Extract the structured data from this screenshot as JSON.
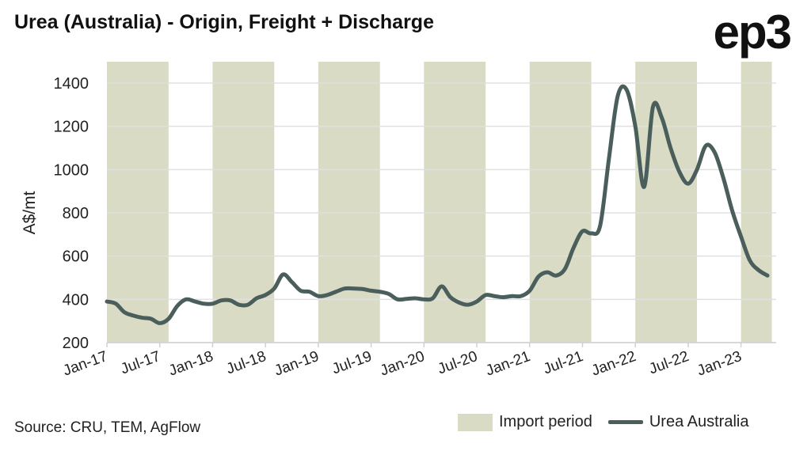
{
  "title": "Urea (Australia) - Origin, Freight + Discharge",
  "logo": "ep3",
  "source": "Source: CRU, TEM, AgFlow",
  "chart_data": {
    "type": "line",
    "title": "Urea (Australia) - Origin, Freight + Discharge",
    "ylabel": "A$/mt",
    "xlabel": "",
    "ylim": [
      200,
      1400
    ],
    "yticks": [
      200,
      400,
      600,
      800,
      1000,
      1200,
      1400
    ],
    "xtick_labels": [
      "Jan-17",
      "Jul-17",
      "Jan-18",
      "Jul-18",
      "Jan-19",
      "Jul-19",
      "Jan-20",
      "Jul-20",
      "Jan-21",
      "Jul-21",
      "Jan-22",
      "Jul-22",
      "Jan-23"
    ],
    "x_start": "Jan-17",
    "x_unit": "month",
    "grid": true,
    "legend": "bottom-right",
    "legend_entries": [
      "Import period",
      "Urea Australia"
    ],
    "import_periods": [
      [
        "Jan-17",
        "Aug-17"
      ],
      [
        "Jan-18",
        "Aug-18"
      ],
      [
        "Jan-19",
        "Aug-19"
      ],
      [
        "Jan-20",
        "Aug-20"
      ],
      [
        "Jan-21",
        "Aug-21"
      ],
      [
        "Jan-22",
        "Aug-22"
      ],
      [
        "Jan-23",
        "May-23"
      ]
    ],
    "import_periods_months": [
      [
        0,
        7
      ],
      [
        12,
        19
      ],
      [
        24,
        31
      ],
      [
        36,
        43
      ],
      [
        48,
        55
      ],
      [
        60,
        67
      ],
      [
        72,
        75.5
      ]
    ],
    "series": [
      {
        "name": "Urea Australia",
        "color": "#4a5e5c",
        "values": [
          390,
          380,
          340,
          325,
          315,
          310,
          290,
          310,
          370,
          400,
          390,
          380,
          380,
          395,
          395,
          375,
          375,
          405,
          420,
          450,
          515,
          480,
          440,
          435,
          415,
          420,
          435,
          450,
          450,
          448,
          440,
          435,
          425,
          400,
          402,
          405,
          400,
          405,
          460,
          410,
          385,
          375,
          390,
          420,
          415,
          410,
          415,
          415,
          440,
          505,
          525,
          510,
          540,
          640,
          715,
          705,
          740,
          1050,
          1340,
          1370,
          1200,
          920,
          1290,
          1240,
          1100,
          990,
          935,
          1000,
          1110,
          1080,
          960,
          810,
          690,
          580,
          535,
          510
        ]
      }
    ],
    "band_color": "#d9dbc5"
  }
}
